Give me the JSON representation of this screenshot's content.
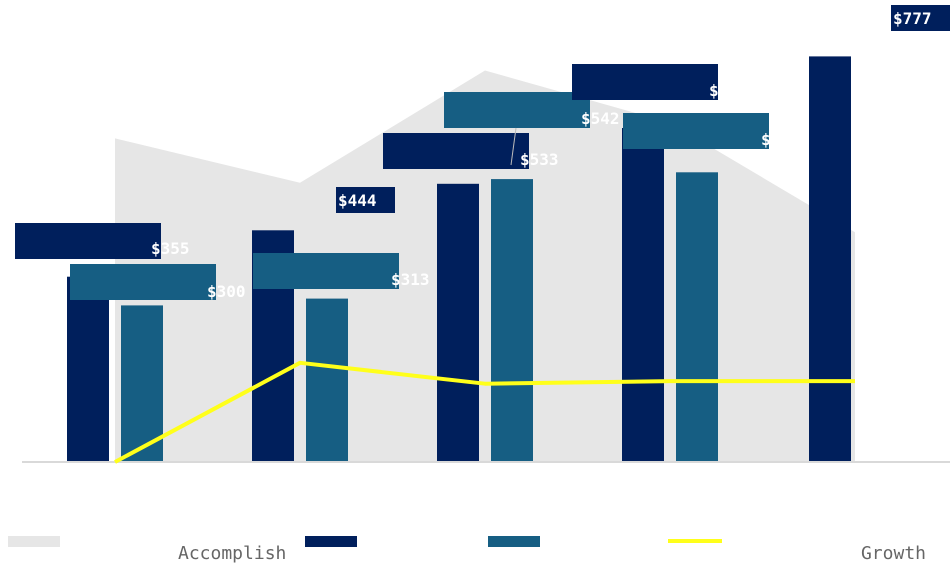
{
  "chart_data": {
    "type": "bar",
    "categories": [
      "",
      "",
      "",
      "",
      ""
    ],
    "series": [
      {
        "name": "Accomplish",
        "type": "area",
        "color": "#e6e6e6",
        "values": [
          620,
          535,
          750,
          650,
          440
        ]
      },
      {
        "name": "",
        "type": "bar",
        "color": "#001f5c",
        "values": [
          355,
          444,
          533,
          640,
          777
        ]
      },
      {
        "name": "",
        "type": "bar",
        "color": "#165e83",
        "values": [
          300,
          313,
          542,
          555,
          null
        ]
      },
      {
        "name": "Growth",
        "type": "line",
        "color": "#ffff1a",
        "values": [
          0,
          190,
          150,
          155,
          155
        ]
      }
    ],
    "data_labels": [
      "$355",
      "$444",
      "$533",
      "$640",
      "$777",
      "$300",
      "$313",
      "$542",
      "$555"
    ],
    "ylim": [
      0,
      820
    ],
    "grid": false,
    "legend": "bottom"
  }
}
